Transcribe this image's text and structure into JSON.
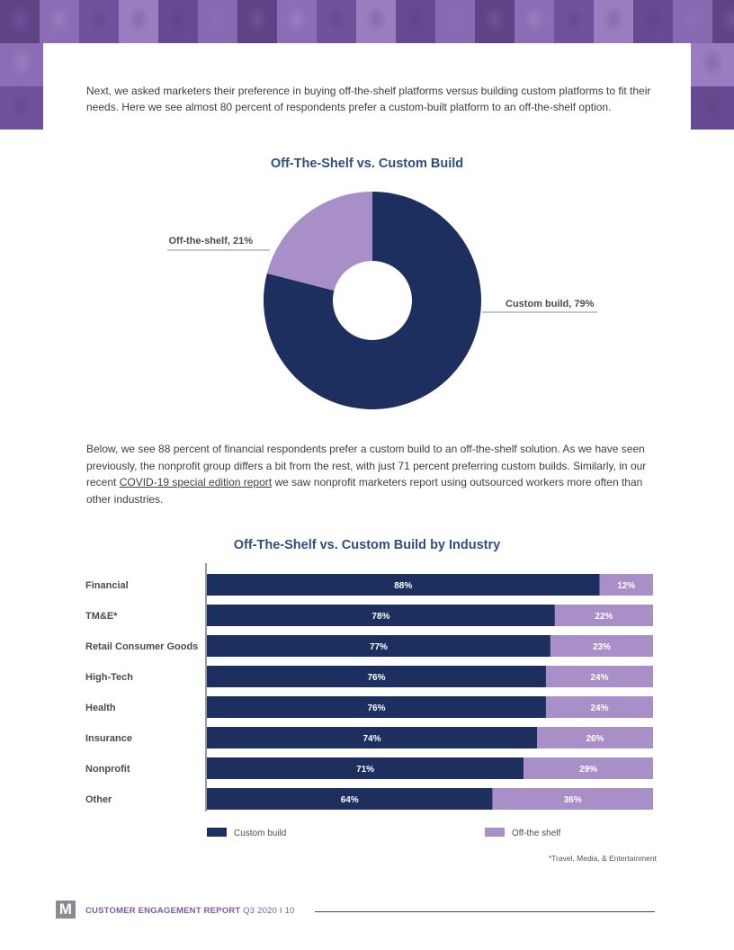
{
  "intro_text": "Next, we asked marketers their preference in buying off-the-shelf platforms versus building custom platforms to fit their needs. Here we see almost 80 percent of respondents prefer a custom-built platform to an off-the-shelf option.",
  "paragraph2": {
    "before": "Below, we see 88 percent of financial respondents prefer a custom build to an off-the-shelf solution. As we have seen previously, the nonprofit group differs a bit from the rest, with just 71 percent preferring custom builds. Similarly, in our recent ",
    "link": "COVID-19 special edition report",
    "after": " we saw nonprofit marketers report using outsourced workers more often than other industries."
  },
  "chart_data": [
    {
      "type": "pie",
      "title": "Off-The-Shelf vs. Custom Build",
      "slices": [
        {
          "label": "Custom build, 79%",
          "value": 79,
          "color": "#1c2f5f"
        },
        {
          "label": "Off-the-shelf, 21%",
          "value": 21,
          "color": "#a88fc7"
        }
      ]
    },
    {
      "type": "bar",
      "orientation": "horizontal",
      "stacked": true,
      "title": "Off-The-Shelf vs. Custom Build by Industry",
      "categories": [
        "Financial",
        "TM&E*",
        "Retail Consumer Goods",
        "High-Tech",
        "Health",
        "Insurance",
        "Nonprofit",
        "Other"
      ],
      "series": [
        {
          "name": "Custom build",
          "color": "#1c2f5f",
          "values": [
            88,
            78,
            77,
            76,
            76,
            74,
            71,
            64
          ],
          "labels": [
            "88%",
            "78%",
            "77%",
            "76%",
            "76%",
            "74%",
            "71%",
            "64%"
          ]
        },
        {
          "name": "Off-the shelf",
          "color": "#a88fc7",
          "values": [
            12,
            22,
            23,
            24,
            24,
            26,
            29,
            36
          ],
          "labels": [
            "12%",
            "22%",
            "23%",
            "24%",
            "24%",
            "26%",
            "29%",
            "36%"
          ]
        }
      ],
      "legend_position": "bottom"
    }
  ],
  "footnote": "*Travel, Media, & Entertainment",
  "footer": {
    "logo_letter": "M",
    "report_title": "CUSTOMER ENGAGEMENT REPORT",
    "issue": " Q3 2020",
    "separator": " I ",
    "page_number": "10"
  }
}
